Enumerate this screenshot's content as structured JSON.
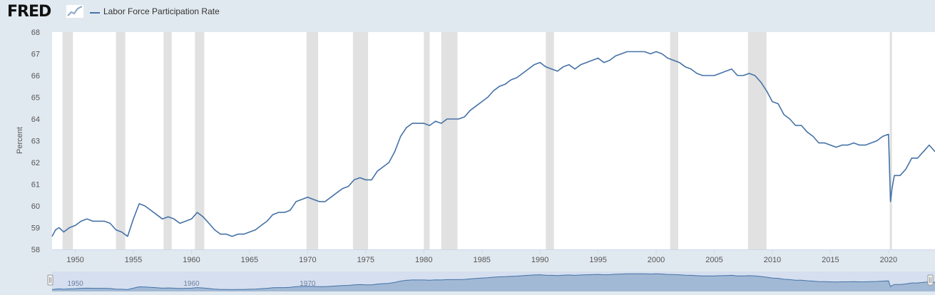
{
  "header": {
    "logo": "FRED",
    "logo_icon": "chart-line-icon"
  },
  "colors": {
    "series": "#4572a7",
    "recession": "#e1e1e1",
    "plot_background": "#ffffff",
    "page_background": "#e1e9f0",
    "navigator_fill": "#b3c4e2",
    "navigator_line": "#4572a7"
  },
  "chart_data": {
    "type": "line",
    "title": "",
    "ylabel": "Percent",
    "xlabel": "",
    "ylim": [
      58,
      68
    ],
    "xlim": [
      1948.0,
      2024.0
    ],
    "yticks": [
      "58",
      "59",
      "60",
      "61",
      "62",
      "63",
      "64",
      "65",
      "66",
      "67",
      "68"
    ],
    "xticks": [
      "1950",
      "1955",
      "1960",
      "1965",
      "1970",
      "1975",
      "1980",
      "1985",
      "1990",
      "1995",
      "2000",
      "2005",
      "2010",
      "2015",
      "2020"
    ],
    "grid": false,
    "legend_placement": "top-left",
    "series": [
      {
        "name": "Labor Force Participation Rate",
        "x": [
          1948.0,
          1948.3,
          1948.6,
          1949.0,
          1949.5,
          1950.0,
          1950.5,
          1951.0,
          1951.5,
          1952.0,
          1952.5,
          1953.0,
          1953.5,
          1954.0,
          1954.5,
          1955.0,
          1955.5,
          1956.0,
          1956.5,
          1957.0,
          1957.5,
          1958.0,
          1958.5,
          1959.0,
          1959.5,
          1960.0,
          1960.5,
          1961.0,
          1961.5,
          1962.0,
          1962.5,
          1963.0,
          1963.5,
          1964.0,
          1964.5,
          1965.0,
          1965.5,
          1966.0,
          1966.5,
          1967.0,
          1967.5,
          1968.0,
          1968.5,
          1969.0,
          1969.5,
          1970.0,
          1970.5,
          1971.0,
          1971.5,
          1972.0,
          1972.5,
          1973.0,
          1973.5,
          1974.0,
          1974.5,
          1975.0,
          1975.5,
          1976.0,
          1976.5,
          1977.0,
          1977.5,
          1978.0,
          1978.5,
          1979.0,
          1979.5,
          1980.0,
          1980.5,
          1981.0,
          1981.5,
          1982.0,
          1982.5,
          1983.0,
          1983.5,
          1984.0,
          1984.5,
          1985.0,
          1985.5,
          1986.0,
          1986.5,
          1987.0,
          1987.5,
          1988.0,
          1988.5,
          1989.0,
          1989.5,
          1990.0,
          1990.5,
          1991.0,
          1991.5,
          1992.0,
          1992.5,
          1993.0,
          1993.5,
          1994.0,
          1994.5,
          1995.0,
          1995.5,
          1996.0,
          1996.5,
          1997.0,
          1997.5,
          1998.0,
          1998.5,
          1999.0,
          1999.5,
          2000.0,
          2000.5,
          2001.0,
          2001.5,
          2002.0,
          2002.5,
          2003.0,
          2003.5,
          2004.0,
          2004.5,
          2005.0,
          2005.5,
          2006.0,
          2006.5,
          2007.0,
          2007.5,
          2008.0,
          2008.5,
          2009.0,
          2009.5,
          2010.0,
          2010.5,
          2011.0,
          2011.5,
          2012.0,
          2012.5,
          2013.0,
          2013.5,
          2014.0,
          2014.5,
          2015.0,
          2015.5,
          2016.0,
          2016.5,
          2017.0,
          2017.5,
          2018.0,
          2018.5,
          2019.0,
          2019.5,
          2020.0,
          2020.17,
          2020.3,
          2020.5,
          2021.0,
          2021.5,
          2022.0,
          2022.5,
          2023.0,
          2023.5,
          2024.0
        ],
        "values": [
          58.6,
          58.9,
          59.0,
          58.8,
          59.0,
          59.1,
          59.3,
          59.4,
          59.3,
          59.3,
          59.3,
          59.2,
          58.9,
          58.8,
          58.6,
          59.4,
          60.1,
          60.0,
          59.8,
          59.6,
          59.4,
          59.5,
          59.4,
          59.2,
          59.3,
          59.4,
          59.7,
          59.5,
          59.2,
          58.9,
          58.7,
          58.7,
          58.6,
          58.7,
          58.7,
          58.8,
          58.9,
          59.1,
          59.3,
          59.6,
          59.7,
          59.7,
          59.8,
          60.2,
          60.3,
          60.4,
          60.3,
          60.2,
          60.2,
          60.4,
          60.6,
          60.8,
          60.9,
          61.2,
          61.3,
          61.2,
          61.2,
          61.6,
          61.8,
          62.0,
          62.5,
          63.2,
          63.6,
          63.8,
          63.8,
          63.8,
          63.7,
          63.9,
          63.8,
          64.0,
          64.0,
          64.0,
          64.1,
          64.4,
          64.6,
          64.8,
          65.0,
          65.3,
          65.5,
          65.6,
          65.8,
          65.9,
          66.1,
          66.3,
          66.5,
          66.6,
          66.4,
          66.3,
          66.2,
          66.4,
          66.5,
          66.3,
          66.5,
          66.6,
          66.7,
          66.8,
          66.6,
          66.7,
          66.9,
          67.0,
          67.1,
          67.1,
          67.1,
          67.1,
          67.0,
          67.1,
          67.0,
          66.8,
          66.7,
          66.6,
          66.4,
          66.3,
          66.1,
          66.0,
          66.0,
          66.0,
          66.1,
          66.2,
          66.3,
          66.0,
          66.0,
          66.1,
          66.0,
          65.7,
          65.3,
          64.8,
          64.7,
          64.2,
          64.0,
          63.7,
          63.7,
          63.4,
          63.2,
          62.9,
          62.9,
          62.8,
          62.7,
          62.8,
          62.8,
          62.9,
          62.8,
          62.8,
          62.9,
          63.0,
          63.2,
          63.3,
          60.2,
          60.8,
          61.4,
          61.4,
          61.7,
          62.2,
          62.2,
          62.5,
          62.8,
          62.5
        ]
      }
    ],
    "recessions": [
      [
        1948.9,
        1949.8
      ],
      [
        1953.5,
        1954.3
      ],
      [
        1957.6,
        1958.3
      ],
      [
        1960.3,
        1961.1
      ],
      [
        1969.9,
        1970.9
      ],
      [
        1973.9,
        1975.2
      ],
      [
        1980.0,
        1980.5
      ],
      [
        1981.5,
        1982.9
      ],
      [
        1990.5,
        1991.2
      ],
      [
        2001.2,
        2001.9
      ],
      [
        2007.9,
        2009.5
      ],
      [
        2020.1,
        2020.3
      ]
    ]
  },
  "navigator": {
    "ticks": [
      "1950",
      "1960",
      "1970"
    ],
    "grip_icon": "resize-handle-icon"
  }
}
